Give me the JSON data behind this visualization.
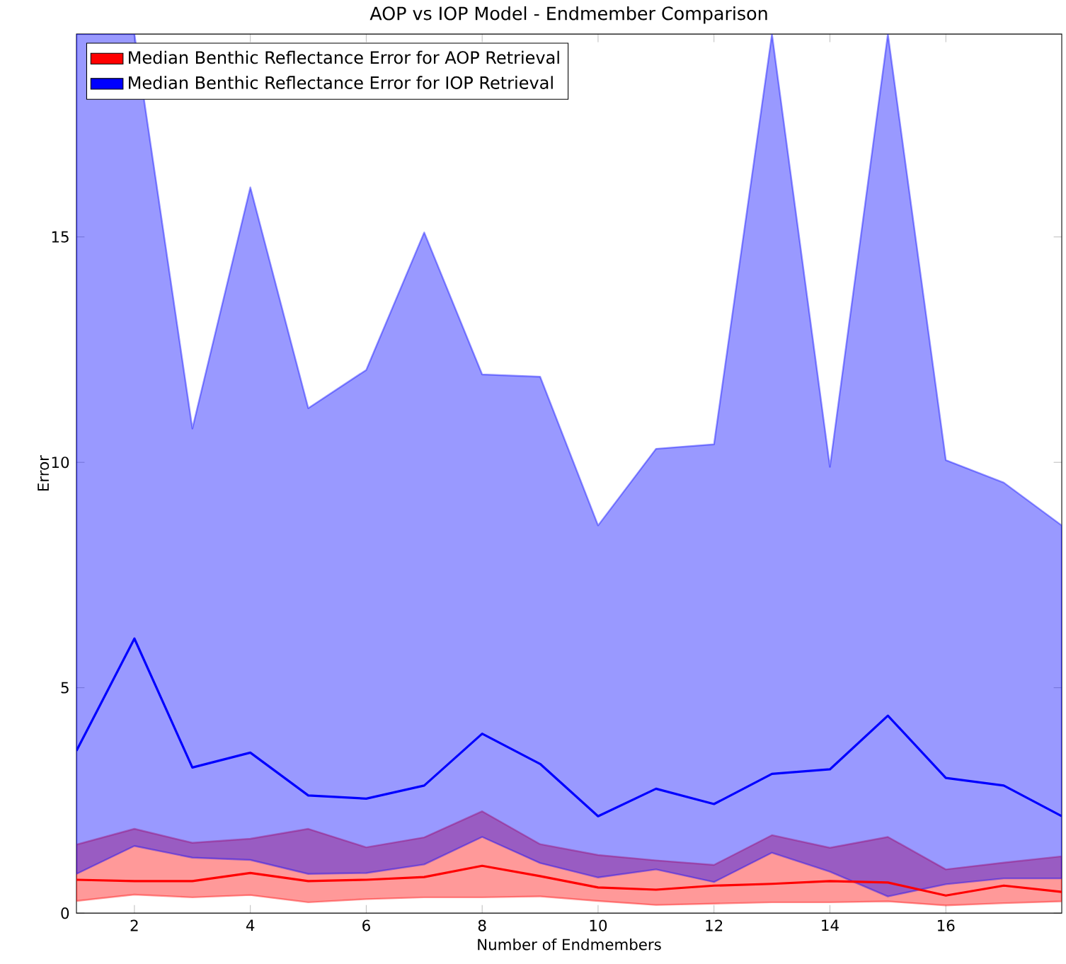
{
  "chart_data": {
    "type": "line",
    "title": "AOP vs IOP Model - Endmember Comparison",
    "xlabel": "Number of Endmembers",
    "ylabel": "Error",
    "x": [
      1,
      2,
      3,
      4,
      5,
      6,
      7,
      8,
      9,
      10,
      11,
      12,
      13,
      14,
      15,
      16,
      17,
      18
    ],
    "series": [
      {
        "name": "Median Benthic Reflectance Error for AOP Retrieval",
        "color": "#ff0000",
        "values": [
          0.74,
          0.71,
          0.71,
          0.89,
          0.71,
          0.74,
          0.8,
          1.05,
          0.82,
          0.57,
          0.52,
          0.61,
          0.65,
          0.71,
          0.68,
          0.39,
          0.61,
          0.47
        ],
        "lower": [
          0.27,
          0.41,
          0.35,
          0.4,
          0.24,
          0.31,
          0.35,
          0.35,
          0.37,
          0.27,
          0.18,
          0.21,
          0.24,
          0.24,
          0.26,
          0.17,
          0.22,
          0.26
        ],
        "upper": [
          1.52,
          1.87,
          1.56,
          1.65,
          1.87,
          1.46,
          1.68,
          2.26,
          1.53,
          1.29,
          1.17,
          1.07,
          1.73,
          1.45,
          1.69,
          0.97,
          1.12,
          1.26
        ]
      },
      {
        "name": "Median Benthic Reflectance Error for IOP Retrieval",
        "color": "#0000ff",
        "values": [
          3.6,
          6.09,
          3.23,
          3.56,
          2.61,
          2.54,
          2.83,
          3.98,
          3.31,
          2.15,
          2.76,
          2.42,
          3.09,
          3.19,
          4.38,
          3.0,
          2.83,
          2.15
        ],
        "lower": [
          0.87,
          1.49,
          1.23,
          1.18,
          0.87,
          0.89,
          1.08,
          1.69,
          1.11,
          0.79,
          0.97,
          0.69,
          1.34,
          0.92,
          0.37,
          0.64,
          0.77,
          0.77
        ],
        "upper": [
          19.5,
          19.5,
          10.75,
          16.1,
          11.2,
          12.05,
          15.1,
          11.95,
          11.9,
          8.6,
          10.3,
          10.4,
          19.5,
          9.9,
          19.5,
          10.05,
          9.55,
          8.6
        ]
      }
    ],
    "xlim": [
      1,
      18
    ],
    "ylim": [
      0,
      19.5
    ],
    "xticks": [
      2,
      4,
      6,
      8,
      10,
      12,
      14,
      16
    ],
    "yticks": [
      0,
      5,
      10,
      15
    ],
    "grid": false,
    "legend": "top left",
    "marker": "none",
    "line_style": "solid"
  }
}
